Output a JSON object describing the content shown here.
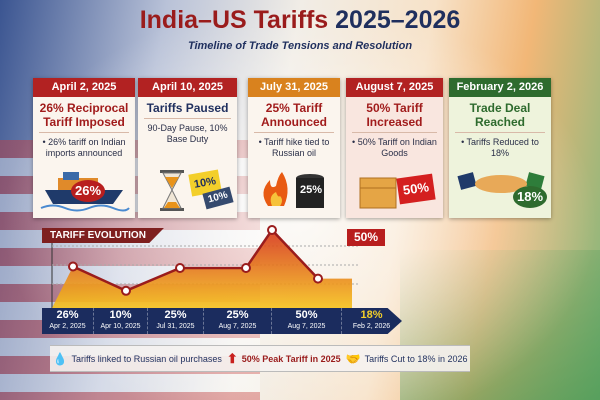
{
  "header": {
    "title_part1": "India–US Tariffs ",
    "title_part2": "2025–2026",
    "subtitle": "Timeline of Trade Tensions and Resolution"
  },
  "cards": [
    {
      "date": "April 2, 2025",
      "headline": "26% Reciprocal Tariff Imposed",
      "detail": "• 26% tariff on Indian imports announced",
      "badge": "26%",
      "color": "#b22222"
    },
    {
      "date": "April 10, 2025",
      "headline": "Tariffs Paused",
      "detail": "90-Day Pause, 10% Base Duty",
      "badge": "10%",
      "badge2": "10%",
      "color": "#b22222"
    },
    {
      "date": "July 31, 2025",
      "headline": "25% Tariff Announced",
      "detail": "• Tariff hike tied to Russian oil",
      "badge": "25%",
      "color": "#d9821e"
    },
    {
      "date": "August 7, 2025",
      "headline": "50% Tariff Increased",
      "detail": "• 50% Tariff on Indian Goods",
      "badge": "50%",
      "color": "#b22222"
    },
    {
      "date": "February 2, 2026",
      "headline": "Trade Deal Reached",
      "detail": "• Tariffs Reduced to 18%",
      "badge": "18%",
      "color": "#2e6b2e"
    }
  ],
  "chart_data": {
    "type": "line",
    "title": "TARIFF EVOLUTION",
    "peak_label": "50%",
    "categories": [
      "Apr 2, 2025",
      "Apr 10, 2025",
      "Jul 31, 2025",
      "Aug 7, 2025",
      "Aug 7, 2025",
      "Feb 2, 2026"
    ],
    "value_labels": [
      "26%",
      "10%",
      "25%",
      "25%",
      "50%",
      "18%"
    ],
    "values": [
      26,
      10,
      25,
      25,
      50,
      18
    ],
    "grid": true
  },
  "footer": {
    "item1": "Tariffs linked to Russian oil purchases",
    "item2": "50% Peak Tariff in 2025",
    "item3": "Tariffs Cut to 18% in 2026"
  }
}
